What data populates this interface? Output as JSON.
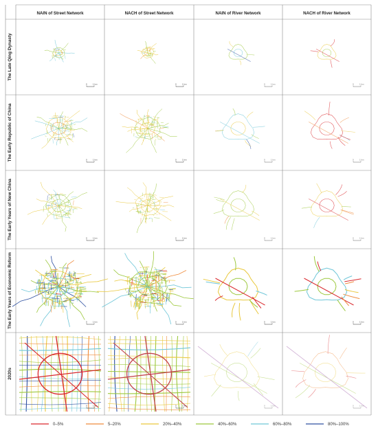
{
  "columns": [
    "NAIN of Street Network",
    "NACH of Street Network",
    "NAIN of River Network",
    "NACH of River  Network"
  ],
  "rows": [
    "The Late Qing Dynasty",
    "The Early Republic of China",
    "The Early Years of New China",
    "The Early Years of Economic Reform",
    "2020s"
  ],
  "scale": {
    "zero": "0",
    "unit": "1 km"
  },
  "legend": [
    {
      "label": "0–5%",
      "color": "#d9262b"
    },
    {
      "label": "5–20%",
      "color": "#ef8a3a"
    },
    {
      "label": "20%–40%",
      "color": "#e9c83c"
    },
    {
      "label": "40%–60%",
      "color": "#9cc83c"
    },
    {
      "label": "60%–80%",
      "color": "#6ec6d8"
    },
    {
      "label": "80%–100%",
      "color": "#2d4fa0"
    }
  ]
}
